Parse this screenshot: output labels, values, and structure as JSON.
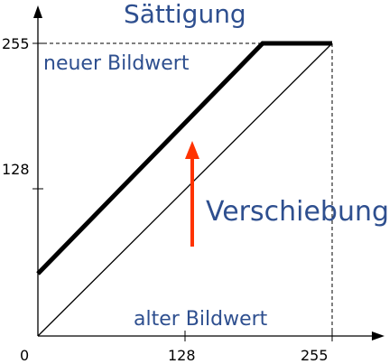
{
  "diagram": {
    "title": "Sättigung",
    "y_label": "neuer Bildwert",
    "x_label": "alter Bildwert",
    "shift_label": "Verschiebung",
    "ticks": {
      "y_255": "255",
      "y_128": "128",
      "x_0": "0",
      "x_128": "128",
      "x_255": "255"
    },
    "colors": {
      "text_blue": "#2e4f8f",
      "arrow": "#ff3300",
      "line": "#000000"
    }
  }
}
